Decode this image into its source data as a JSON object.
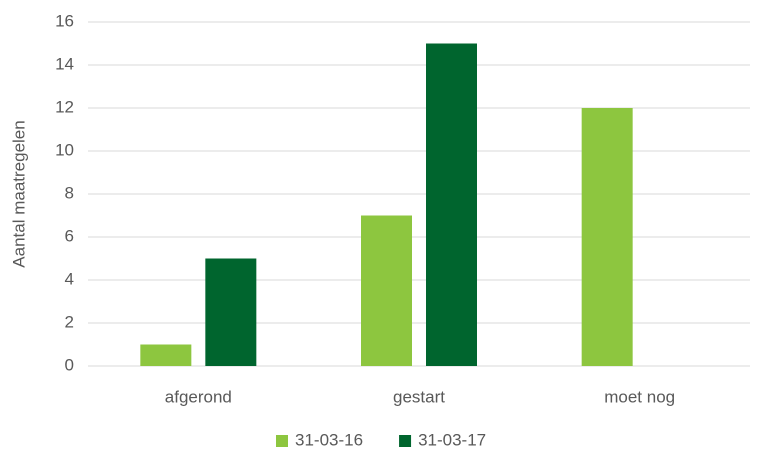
{
  "chart_data": {
    "type": "bar",
    "y_label": "Aantal maatregelen",
    "categories": [
      "afgerond",
      "gestart",
      "moet nog"
    ],
    "series": [
      {
        "name": "31-03-16",
        "color": "#8dc63f",
        "values": [
          1,
          7,
          12
        ]
      },
      {
        "name": "31-03-17",
        "color": "#00652e",
        "values": [
          5,
          15,
          0
        ]
      }
    ],
    "ylim": [
      0,
      16
    ],
    "yticks": [
      0,
      2,
      4,
      6,
      8,
      10,
      12,
      14,
      16
    ],
    "grid": true,
    "legend": "bottom"
  }
}
